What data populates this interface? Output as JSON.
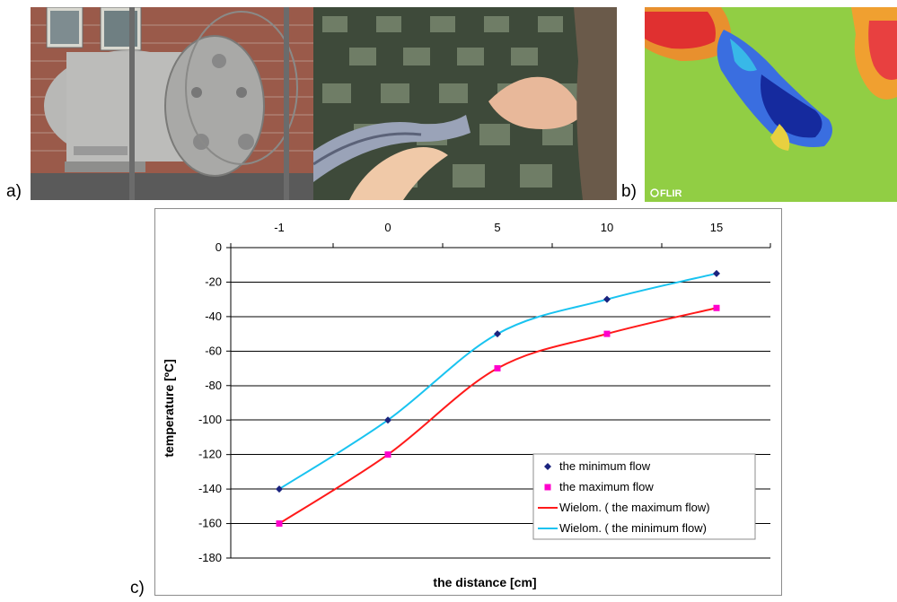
{
  "panels": {
    "a_label": "a)",
    "b_label": "b)",
    "c_label": "c)",
    "flir_logo": "FLIR"
  },
  "chart_data": {
    "type": "line",
    "xlabel": "the distance [cm]",
    "ylabel": "temperature [ºC]",
    "categories": [
      "-1",
      "0",
      "5",
      "10",
      "15"
    ],
    "ylim": [
      -180,
      0
    ],
    "yticks": [
      0,
      -20,
      -40,
      -60,
      -80,
      -100,
      -120,
      -140,
      -160,
      -180
    ],
    "x_axis_position": "top",
    "grid": "horizontal",
    "legend_position": "bottom-right",
    "series": [
      {
        "name": "the minimum flow",
        "values": [
          -140,
          -100,
          -50,
          -30,
          -15
        ],
        "color": "#1a237e",
        "marker": "diamond"
      },
      {
        "name": "the maximum flow",
        "values": [
          -160,
          -120,
          -70,
          -50,
          -35
        ],
        "color": "#ff00cc",
        "marker": "square"
      }
    ],
    "trendlines": [
      {
        "name": "Wielom. ( the maximum flow)",
        "of": "the maximum flow",
        "color": "#ff1a1a"
      },
      {
        "name": "Wielom. ( the minimum flow)",
        "of": "the minimum flow",
        "color": "#19c3f0"
      }
    ]
  }
}
